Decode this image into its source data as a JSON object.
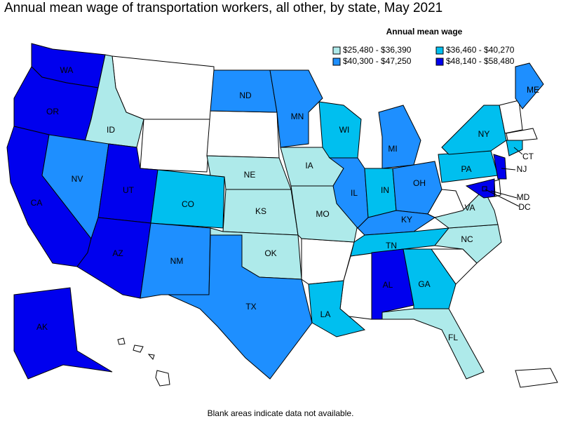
{
  "title": "Annual mean wage of transportation workers, all other, by state, May 2021",
  "legend": {
    "title": "Annual mean wage",
    "items": [
      {
        "label": "$25,480 - $36,390",
        "color": "#aeeaea"
      },
      {
        "label": "$36,460 - $40,270",
        "color": "#00bfef"
      },
      {
        "label": "$40,300 - $47,250",
        "color": "#1e8fff"
      },
      {
        "label": "$48,140 - $58,480",
        "color": "#0000ee"
      }
    ]
  },
  "states": [
    {
      "label": "WA",
      "bin": 3
    },
    {
      "label": "OR",
      "bin": 3
    },
    {
      "label": "CA",
      "bin": 3
    },
    {
      "label": "ID",
      "bin": 0
    },
    {
      "label": "NV",
      "bin": 2
    },
    {
      "label": "UT",
      "bin": 3
    },
    {
      "label": "AZ",
      "bin": 3
    },
    {
      "label": "CO",
      "bin": 1
    },
    {
      "label": "NM",
      "bin": 2
    },
    {
      "label": "ND",
      "bin": 2
    },
    {
      "label": "NE",
      "bin": 0
    },
    {
      "label": "KS",
      "bin": 0
    },
    {
      "label": "OK",
      "bin": 0
    },
    {
      "label": "TX",
      "bin": 2
    },
    {
      "label": "MN",
      "bin": 2
    },
    {
      "label": "IA",
      "bin": 0
    },
    {
      "label": "MO",
      "bin": 0
    },
    {
      "label": "LA",
      "bin": 1
    },
    {
      "label": "WI",
      "bin": 1
    },
    {
      "label": "IL",
      "bin": 2
    },
    {
      "label": "MI",
      "bin": 2
    },
    {
      "label": "IN",
      "bin": 1
    },
    {
      "label": "OH",
      "bin": 2
    },
    {
      "label": "KY",
      "bin": 2
    },
    {
      "label": "TN",
      "bin": 1
    },
    {
      "label": "AL",
      "bin": 3
    },
    {
      "label": "GA",
      "bin": 1
    },
    {
      "label": "FL",
      "bin": 0
    },
    {
      "label": "NC",
      "bin": 0
    },
    {
      "label": "VA",
      "bin": 0
    },
    {
      "label": "PA",
      "bin": 1
    },
    {
      "label": "NY",
      "bin": 1
    },
    {
      "label": "ME",
      "bin": 2
    },
    {
      "label": "CT",
      "bin": 1
    },
    {
      "label": "NJ",
      "bin": 3
    },
    {
      "label": "MD",
      "bin": 3
    },
    {
      "label": "DC",
      "bin": 3
    },
    {
      "label": "AK",
      "bin": 3
    }
  ],
  "footnote": "Blank areas indicate data not available."
}
